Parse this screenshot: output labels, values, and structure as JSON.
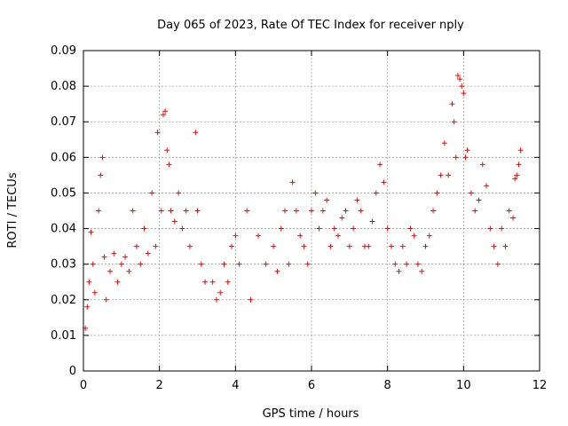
{
  "chart_data": {
    "type": "scatter",
    "title": "Day 065 of 2023, Rate Of TEC Index for receiver nply",
    "xlabel": "GPS time / hours",
    "ylabel": "ROTI / TECUs",
    "xlim": [
      0,
      12
    ],
    "ylim": [
      0,
      0.09
    ],
    "x_ticks": [
      "0",
      "2",
      "4",
      "6",
      "8",
      "10",
      "12"
    ],
    "y_ticks": [
      "0",
      "0.01",
      "0.02",
      "0.03",
      "0.04",
      "0.05",
      "0.06",
      "0.07",
      "0.08",
      "0.09"
    ],
    "grid": true,
    "marker": "+",
    "color": "#ff0000",
    "series": [
      {
        "values": [
          [
            0.05,
            0.012
          ],
          [
            0.1,
            0.018
          ],
          [
            0.15,
            0.025
          ],
          [
            0.2,
            0.039
          ],
          [
            0.25,
            0.03
          ],
          [
            0.3,
            0.022
          ],
          [
            0.4,
            0.045
          ],
          [
            0.45,
            0.055
          ],
          [
            0.5,
            0.06
          ],
          [
            0.55,
            0.032
          ],
          [
            0.6,
            0.02
          ],
          [
            0.7,
            0.028
          ],
          [
            0.8,
            0.033
          ],
          [
            0.9,
            0.025
          ],
          [
            1.0,
            0.03
          ],
          [
            1.1,
            0.032
          ],
          [
            1.2,
            0.028
          ],
          [
            1.3,
            0.045
          ],
          [
            1.4,
            0.035
          ],
          [
            1.5,
            0.03
          ],
          [
            1.6,
            0.04
          ],
          [
            1.7,
            0.033
          ],
          [
            1.8,
            0.05
          ],
          [
            1.9,
            0.035
          ],
          [
            1.95,
            0.067
          ],
          [
            2.05,
            0.045
          ],
          [
            2.1,
            0.072
          ],
          [
            2.15,
            0.073
          ],
          [
            2.2,
            0.062
          ],
          [
            2.25,
            0.058
          ],
          [
            2.3,
            0.045
          ],
          [
            2.4,
            0.042
          ],
          [
            2.5,
            0.05
          ],
          [
            2.6,
            0.04
          ],
          [
            2.7,
            0.045
          ],
          [
            2.8,
            0.035
          ],
          [
            2.95,
            0.067
          ],
          [
            3.0,
            0.045
          ],
          [
            3.1,
            0.03
          ],
          [
            3.2,
            0.025
          ],
          [
            3.4,
            0.025
          ],
          [
            3.5,
            0.02
          ],
          [
            3.6,
            0.022
          ],
          [
            3.7,
            0.03
          ],
          [
            3.8,
            0.025
          ],
          [
            3.9,
            0.035
          ],
          [
            4.0,
            0.038
          ],
          [
            4.1,
            0.03
          ],
          [
            4.3,
            0.045
          ],
          [
            4.4,
            0.02
          ],
          [
            4.6,
            0.038
          ],
          [
            4.8,
            0.03
          ],
          [
            5.0,
            0.035
          ],
          [
            5.1,
            0.028
          ],
          [
            5.2,
            0.04
          ],
          [
            5.3,
            0.045
          ],
          [
            5.4,
            0.03
          ],
          [
            5.5,
            0.053
          ],
          [
            5.6,
            0.045
          ],
          [
            5.7,
            0.038
          ],
          [
            5.8,
            0.035
          ],
          [
            5.9,
            0.03
          ],
          [
            6.0,
            0.045
          ],
          [
            6.1,
            0.05
          ],
          [
            6.2,
            0.04
          ],
          [
            6.3,
            0.045
          ],
          [
            6.4,
            0.048
          ],
          [
            6.5,
            0.035
          ],
          [
            6.6,
            0.04
          ],
          [
            6.7,
            0.038
          ],
          [
            6.8,
            0.043
          ],
          [
            6.9,
            0.045
          ],
          [
            7.0,
            0.035
          ],
          [
            7.1,
            0.04
          ],
          [
            7.2,
            0.048
          ],
          [
            7.3,
            0.045
          ],
          [
            7.4,
            0.035
          ],
          [
            7.5,
            0.035
          ],
          [
            7.6,
            0.042
          ],
          [
            7.7,
            0.05
          ],
          [
            7.8,
            0.058
          ],
          [
            7.9,
            0.053
          ],
          [
            8.0,
            0.04
          ],
          [
            8.1,
            0.035
          ],
          [
            8.2,
            0.03
          ],
          [
            8.3,
            0.028
          ],
          [
            8.4,
            0.035
          ],
          [
            8.5,
            0.03
          ],
          [
            8.6,
            0.04
          ],
          [
            8.7,
            0.038
          ],
          [
            8.8,
            0.03
          ],
          [
            8.9,
            0.028
          ],
          [
            9.0,
            0.035
          ],
          [
            9.1,
            0.038
          ],
          [
            9.2,
            0.045
          ],
          [
            9.3,
            0.05
          ],
          [
            9.4,
            0.055
          ],
          [
            9.5,
            0.064
          ],
          [
            9.6,
            0.055
          ],
          [
            9.7,
            0.075
          ],
          [
            9.75,
            0.07
          ],
          [
            9.8,
            0.06
          ],
          [
            9.85,
            0.083
          ],
          [
            9.9,
            0.082
          ],
          [
            9.95,
            0.08
          ],
          [
            10.0,
            0.078
          ],
          [
            10.05,
            0.06
          ],
          [
            10.1,
            0.062
          ],
          [
            10.2,
            0.05
          ],
          [
            10.3,
            0.045
          ],
          [
            10.4,
            0.048
          ],
          [
            10.5,
            0.058
          ],
          [
            10.6,
            0.052
          ],
          [
            10.7,
            0.04
          ],
          [
            10.8,
            0.035
          ],
          [
            10.9,
            0.03
          ],
          [
            11.0,
            0.04
          ],
          [
            11.1,
            0.035
          ],
          [
            11.2,
            0.045
          ],
          [
            11.3,
            0.043
          ],
          [
            11.35,
            0.054
          ],
          [
            11.4,
            0.055
          ],
          [
            11.45,
            0.058
          ],
          [
            11.5,
            0.062
          ]
        ]
      }
    ]
  }
}
